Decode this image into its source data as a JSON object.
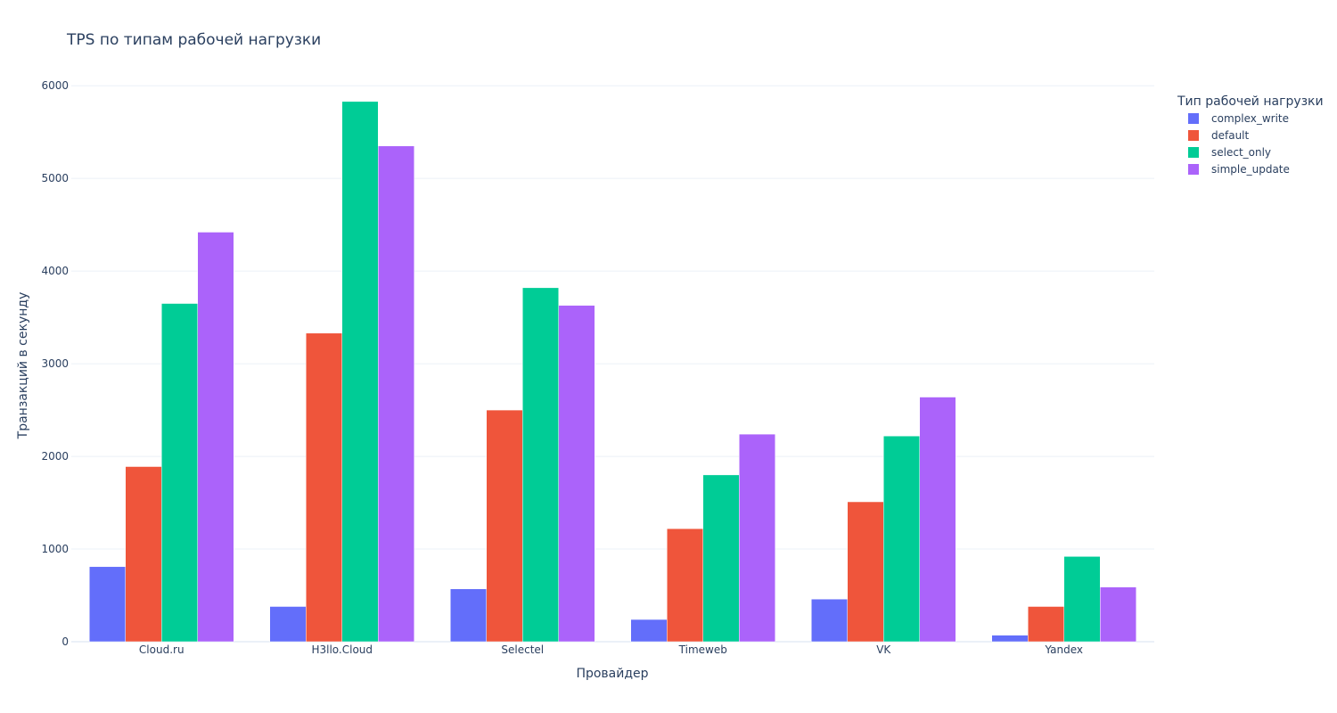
{
  "chart_data": {
    "type": "bar",
    "title": "TPS по типам рабочей нагрузки",
    "xlabel": "Провайдер",
    "ylabel": "Транзакций в секунду",
    "categories": [
      "Cloud.ru",
      "H3llo.Cloud",
      "Selectel",
      "Timeweb",
      "VK",
      "Yandex"
    ],
    "ylim": [
      0,
      6300
    ],
    "yticks": [
      0,
      1000,
      2000,
      3000,
      4000,
      5000,
      6000
    ],
    "legend_title": "Тип рабочей нагрузки",
    "legend_position": "top-right",
    "series": [
      {
        "name": "complex_write",
        "color": "#636efa",
        "values": [
          810,
          380,
          570,
          240,
          460,
          70
        ]
      },
      {
        "name": "default",
        "color": "#ef553b",
        "values": [
          1890,
          3330,
          2500,
          1220,
          1510,
          380
        ]
      },
      {
        "name": "select_only",
        "color": "#00cc96",
        "values": [
          3650,
          5830,
          3820,
          1800,
          2220,
          920
        ]
      },
      {
        "name": "simple_update",
        "color": "#ab63fa",
        "values": [
          4420,
          5350,
          3630,
          2240,
          2640,
          590
        ]
      }
    ]
  }
}
